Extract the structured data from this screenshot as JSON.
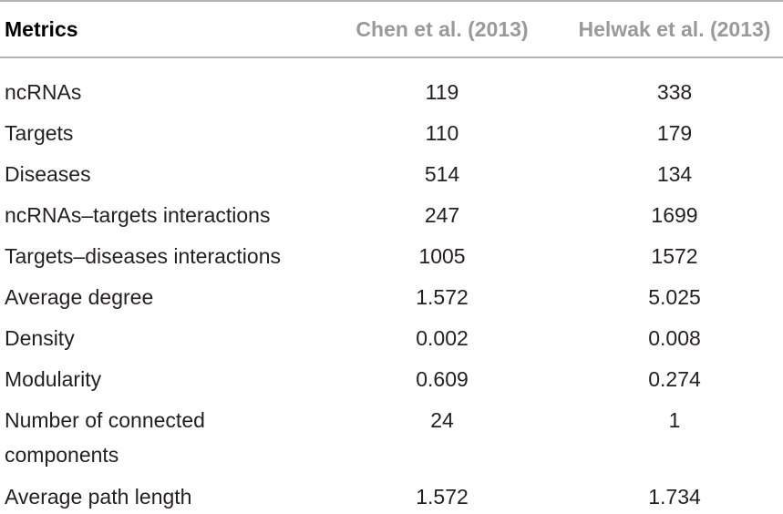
{
  "table": {
    "header": [
      "Metrics",
      "Chen et al. (2013)",
      "Helwak et al. (2013)"
    ],
    "rows": [
      [
        "ncRNAs",
        "119",
        "338"
      ],
      [
        "Targets",
        "110",
        "179"
      ],
      [
        "Diseases",
        "514",
        "134"
      ],
      [
        "ncRNAs–targets interactions",
        "247",
        "1699"
      ],
      [
        "Targets–diseases interactions",
        "1005",
        "1572"
      ],
      [
        "Average degree",
        "1.572",
        "5.025"
      ],
      [
        "Density",
        "0.002",
        "0.008"
      ],
      [
        "Modularity",
        "0.609",
        "0.274"
      ],
      [
        "Number of connected components",
        "24",
        "1"
      ],
      [
        "Average path length",
        "1.572",
        "1.734"
      ]
    ]
  }
}
